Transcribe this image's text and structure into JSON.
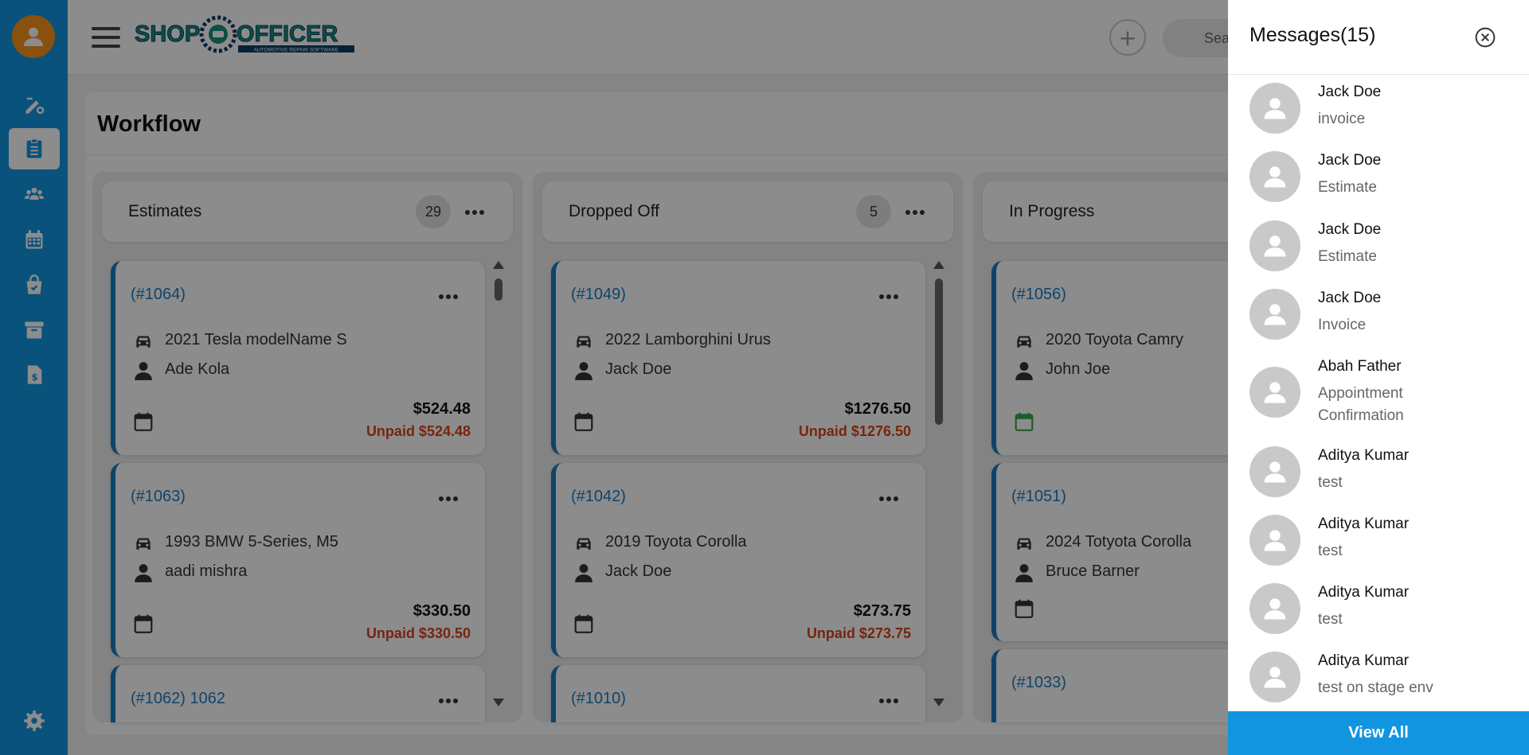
{
  "header": {
    "logo_text": "SHOP OFFICER",
    "logo_tagline": "AUTOMOTIVE REPAIR SOFTWARE",
    "add_icon": "+",
    "search_placeholder": "Sea"
  },
  "sidebar": {
    "items": [
      {
        "name": "sign-settings-icon",
        "active": false
      },
      {
        "name": "clipboard-list-icon",
        "active": true
      },
      {
        "name": "users-icon",
        "active": false
      },
      {
        "name": "calendar-icon",
        "active": false
      },
      {
        "name": "shopping-bag-icon",
        "active": false
      },
      {
        "name": "archive-icon",
        "active": false
      },
      {
        "name": "invoice-dollar-icon",
        "active": false
      }
    ],
    "settings_icon": "gear-icon"
  },
  "page": {
    "title": "Workflow"
  },
  "columns": [
    {
      "title": "Estimates",
      "count": "29",
      "cards": [
        {
          "id": "(#1064)",
          "vehicle": "2021 Tesla modelName S",
          "customer": "Ade Kola",
          "total": "$524.48",
          "unpaid": "Unpaid $524.48"
        },
        {
          "id": "(#1063)",
          "vehicle": "1993 BMW 5-Series, M5",
          "customer": "aadi mishra",
          "total": "$330.50",
          "unpaid": "Unpaid $330.50"
        },
        {
          "id": "(#1062) 1062",
          "vehicle": "",
          "customer": "",
          "total": "",
          "unpaid": ""
        }
      ]
    },
    {
      "title": "Dropped Off",
      "count": "5",
      "cards": [
        {
          "id": "(#1049)",
          "vehicle": "2022 Lamborghini Urus",
          "customer": "Jack Doe",
          "total": "$1276.50",
          "unpaid": "Unpaid $1276.50"
        },
        {
          "id": "(#1042)",
          "vehicle": "2019 Toyota Corolla",
          "customer": "Jack Doe",
          "total": "$273.75",
          "unpaid": "Unpaid $273.75"
        },
        {
          "id": "(#1010)",
          "vehicle": "",
          "customer": "",
          "total": "",
          "unpaid": ""
        }
      ]
    },
    {
      "title": "In Progress",
      "count": "",
      "cards": [
        {
          "id": "(#1056)",
          "vehicle": "2020 Toyota Camry",
          "customer": "John Joe",
          "total": "",
          "unpaid": ""
        },
        {
          "id": "(#1051)",
          "vehicle": "2024 Totyota Corolla",
          "customer": "Bruce Barner",
          "total": "",
          "unpaid": ""
        },
        {
          "id": "(#1033)",
          "vehicle": "",
          "customer": "",
          "total": "",
          "unpaid": ""
        }
      ]
    }
  ],
  "messages_panel": {
    "title": "Messages(15)",
    "messages": [
      {
        "name": "Jack Doe",
        "text": "invoice"
      },
      {
        "name": "Jack Doe",
        "text": "Estimate"
      },
      {
        "name": "Jack Doe",
        "text": "Estimate"
      },
      {
        "name": "Jack Doe",
        "text": "Invoice"
      },
      {
        "name": "Abah Father",
        "text": "Appointment Confirmation"
      },
      {
        "name": "Aditya Kumar",
        "text": "test"
      },
      {
        "name": "Aditya Kumar",
        "text": "test"
      },
      {
        "name": "Aditya Kumar",
        "text": "test"
      },
      {
        "name": "Aditya Kumar",
        "text": "test on stage env"
      }
    ],
    "view_all_label": "View All"
  },
  "colors": {
    "brand_blue": "#1195e0",
    "card_accent": "#1b7cc4",
    "unpaid_red": "#d9441c",
    "avatar_orange": "#f7941d",
    "logo_green": "#1a8f7a"
  }
}
